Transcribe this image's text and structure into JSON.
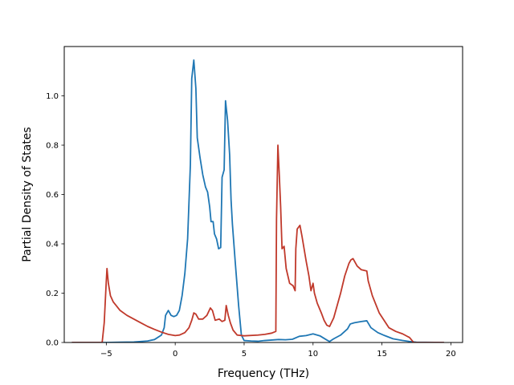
{
  "chart_data": {
    "type": "line",
    "title": "",
    "xlabel": "Frequency (THz)",
    "ylabel": "Partial Density of States",
    "xlim": [
      -8.05,
      20.85
    ],
    "ylim": [
      0.0,
      1.2
    ],
    "xticks": [
      -5,
      0,
      5,
      10,
      15,
      20
    ],
    "xtick_labels": [
      "−5",
      "0",
      "5",
      "10",
      "15",
      "20"
    ],
    "yticks": [
      0.0,
      0.2,
      0.4,
      0.6,
      0.8,
      1.0
    ],
    "ytick_labels": [
      "0.0",
      "0.2",
      "0.4",
      "0.6",
      "0.8",
      "1.0"
    ],
    "grid": false,
    "series": [
      {
        "color": "#1f77b4",
        "points": [
          [
            -7.5,
            0.0
          ],
          [
            -5.0,
            0.0
          ],
          [
            -4.0,
            0.001
          ],
          [
            -3.0,
            0.002
          ],
          [
            -2.0,
            0.006
          ],
          [
            -1.5,
            0.012
          ],
          [
            -1.0,
            0.03
          ],
          [
            -0.8,
            0.06
          ],
          [
            -0.7,
            0.11
          ],
          [
            -0.5,
            0.13
          ],
          [
            -0.3,
            0.11
          ],
          [
            -0.1,
            0.105
          ],
          [
            0.1,
            0.11
          ],
          [
            0.3,
            0.13
          ],
          [
            0.5,
            0.19
          ],
          [
            0.7,
            0.28
          ],
          [
            0.9,
            0.42
          ],
          [
            1.1,
            0.72
          ],
          [
            1.2,
            1.07
          ],
          [
            1.35,
            1.145
          ],
          [
            1.5,
            1.03
          ],
          [
            1.6,
            0.83
          ],
          [
            1.8,
            0.75
          ],
          [
            2.0,
            0.68
          ],
          [
            2.2,
            0.63
          ],
          [
            2.35,
            0.61
          ],
          [
            2.5,
            0.55
          ],
          [
            2.6,
            0.49
          ],
          [
            2.75,
            0.49
          ],
          [
            2.85,
            0.44
          ],
          [
            3.0,
            0.42
          ],
          [
            3.15,
            0.38
          ],
          [
            3.3,
            0.385
          ],
          [
            3.4,
            0.67
          ],
          [
            3.55,
            0.7
          ],
          [
            3.65,
            0.98
          ],
          [
            3.8,
            0.9
          ],
          [
            3.95,
            0.76
          ],
          [
            4.05,
            0.58
          ],
          [
            4.15,
            0.48
          ],
          [
            4.35,
            0.33
          ],
          [
            4.6,
            0.15
          ],
          [
            4.8,
            0.03
          ],
          [
            5.0,
            0.008
          ],
          [
            5.5,
            0.006
          ],
          [
            6.0,
            0.005
          ],
          [
            6.5,
            0.008
          ],
          [
            7.0,
            0.01
          ],
          [
            7.5,
            0.012
          ],
          [
            8.0,
            0.011
          ],
          [
            8.5,
            0.013
          ],
          [
            9.0,
            0.025
          ],
          [
            9.5,
            0.028
          ],
          [
            10.0,
            0.035
          ],
          [
            10.5,
            0.027
          ],
          [
            11.0,
            0.01
          ],
          [
            11.2,
            0.004
          ],
          [
            11.5,
            0.015
          ],
          [
            12.0,
            0.03
          ],
          [
            12.5,
            0.055
          ],
          [
            12.7,
            0.075
          ],
          [
            13.0,
            0.08
          ],
          [
            13.5,
            0.085
          ],
          [
            13.9,
            0.088
          ],
          [
            14.2,
            0.06
          ],
          [
            14.7,
            0.04
          ],
          [
            15.2,
            0.028
          ],
          [
            15.8,
            0.015
          ],
          [
            16.5,
            0.008
          ],
          [
            17.0,
            0.004
          ],
          [
            17.5,
            0.001
          ],
          [
            19.5,
            0.0
          ]
        ]
      },
      {
        "color": "#c0392b",
        "points": [
          [
            -7.5,
            0.0
          ],
          [
            -5.3,
            0.0
          ],
          [
            -5.15,
            0.08
          ],
          [
            -5.0,
            0.25
          ],
          [
            -4.95,
            0.3
          ],
          [
            -4.85,
            0.24
          ],
          [
            -4.7,
            0.19
          ],
          [
            -4.5,
            0.165
          ],
          [
            -4.0,
            0.13
          ],
          [
            -3.5,
            0.11
          ],
          [
            -3.0,
            0.095
          ],
          [
            -2.5,
            0.08
          ],
          [
            -2.0,
            0.065
          ],
          [
            -1.5,
            0.053
          ],
          [
            -1.0,
            0.042
          ],
          [
            -0.5,
            0.033
          ],
          [
            0.0,
            0.028
          ],
          [
            0.3,
            0.03
          ],
          [
            0.7,
            0.04
          ],
          [
            1.0,
            0.06
          ],
          [
            1.2,
            0.09
          ],
          [
            1.35,
            0.12
          ],
          [
            1.5,
            0.115
          ],
          [
            1.7,
            0.095
          ],
          [
            2.0,
            0.095
          ],
          [
            2.3,
            0.11
          ],
          [
            2.55,
            0.14
          ],
          [
            2.7,
            0.13
          ],
          [
            2.9,
            0.09
          ],
          [
            3.2,
            0.095
          ],
          [
            3.4,
            0.085
          ],
          [
            3.6,
            0.09
          ],
          [
            3.7,
            0.15
          ],
          [
            3.85,
            0.11
          ],
          [
            4.0,
            0.08
          ],
          [
            4.2,
            0.05
          ],
          [
            4.5,
            0.03
          ],
          [
            5.0,
            0.027
          ],
          [
            6.0,
            0.03
          ],
          [
            6.5,
            0.033
          ],
          [
            7.0,
            0.038
          ],
          [
            7.3,
            0.045
          ],
          [
            7.35,
            0.5
          ],
          [
            7.45,
            0.8
          ],
          [
            7.55,
            0.68
          ],
          [
            7.65,
            0.55
          ],
          [
            7.75,
            0.38
          ],
          [
            7.9,
            0.39
          ],
          [
            8.05,
            0.3
          ],
          [
            8.3,
            0.24
          ],
          [
            8.55,
            0.23
          ],
          [
            8.7,
            0.21
          ],
          [
            8.75,
            0.38
          ],
          [
            8.85,
            0.46
          ],
          [
            9.05,
            0.475
          ],
          [
            9.2,
            0.43
          ],
          [
            9.5,
            0.33
          ],
          [
            9.7,
            0.27
          ],
          [
            9.85,
            0.21
          ],
          [
            10.0,
            0.24
          ],
          [
            10.1,
            0.2
          ],
          [
            10.3,
            0.16
          ],
          [
            10.6,
            0.12
          ],
          [
            10.8,
            0.09
          ],
          [
            11.0,
            0.07
          ],
          [
            11.2,
            0.065
          ],
          [
            11.5,
            0.1
          ],
          [
            12.0,
            0.2
          ],
          [
            12.3,
            0.27
          ],
          [
            12.6,
            0.32
          ],
          [
            12.75,
            0.335
          ],
          [
            12.9,
            0.34
          ],
          [
            13.2,
            0.31
          ],
          [
            13.5,
            0.295
          ],
          [
            13.9,
            0.29
          ],
          [
            14.0,
            0.25
          ],
          [
            14.3,
            0.19
          ],
          [
            14.8,
            0.12
          ],
          [
            15.5,
            0.06
          ],
          [
            16.0,
            0.045
          ],
          [
            16.5,
            0.035
          ],
          [
            17.0,
            0.02
          ],
          [
            17.3,
            0.0
          ],
          [
            19.5,
            0.0
          ]
        ]
      }
    ]
  }
}
